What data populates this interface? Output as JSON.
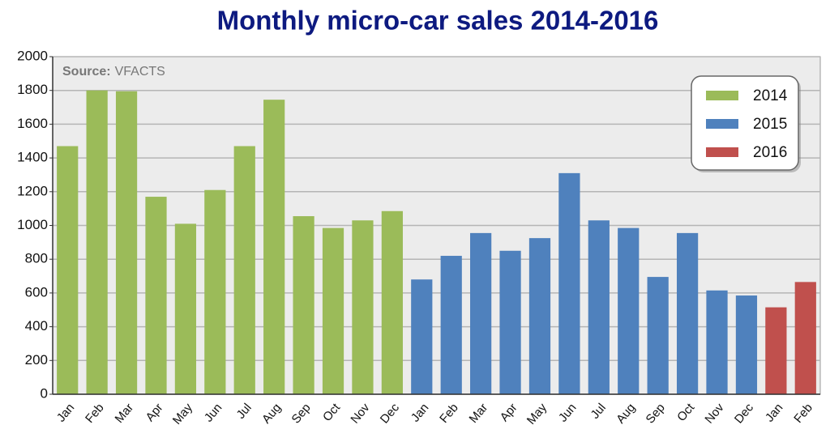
{
  "chart_data": {
    "type": "bar",
    "title": "Monthly micro-car sales 2014-2016",
    "source_label": "Source:",
    "source": "VFACTS",
    "categories": [
      "Jan",
      "Feb",
      "Mar",
      "Apr",
      "May",
      "Jun",
      "Jul",
      "Aug",
      "Sep",
      "Oct",
      "Nov",
      "Dec",
      "Jan",
      "Feb",
      "Mar",
      "Apr",
      "May",
      "Jun",
      "Jul",
      "Aug",
      "Sep",
      "Oct",
      "Nov",
      "Dec",
      "Jan",
      "Feb"
    ],
    "series": [
      {
        "name": "2014",
        "color": "#9bbb59",
        "values": [
          1470,
          1800,
          1795,
          1170,
          1010,
          1210,
          1470,
          1745,
          1055,
          985,
          1030,
          1085,
          null,
          null,
          null,
          null,
          null,
          null,
          null,
          null,
          null,
          null,
          null,
          null,
          null,
          null
        ]
      },
      {
        "name": "2015",
        "color": "#4f81bd",
        "values": [
          null,
          null,
          null,
          null,
          null,
          null,
          null,
          null,
          null,
          null,
          null,
          null,
          680,
          820,
          955,
          850,
          925,
          1310,
          1030,
          985,
          695,
          955,
          615,
          585,
          null,
          null
        ]
      },
      {
        "name": "2016",
        "color": "#c0504d",
        "values": [
          null,
          null,
          null,
          null,
          null,
          null,
          null,
          null,
          null,
          null,
          null,
          null,
          null,
          null,
          null,
          null,
          null,
          null,
          null,
          null,
          null,
          null,
          null,
          null,
          515,
          665
        ]
      }
    ],
    "ylim": [
      0,
      2000
    ],
    "yticks": [
      0,
      200,
      400,
      600,
      800,
      1000,
      1200,
      1400,
      1600,
      1800,
      2000
    ],
    "grid": true,
    "legend": "upper right"
  }
}
